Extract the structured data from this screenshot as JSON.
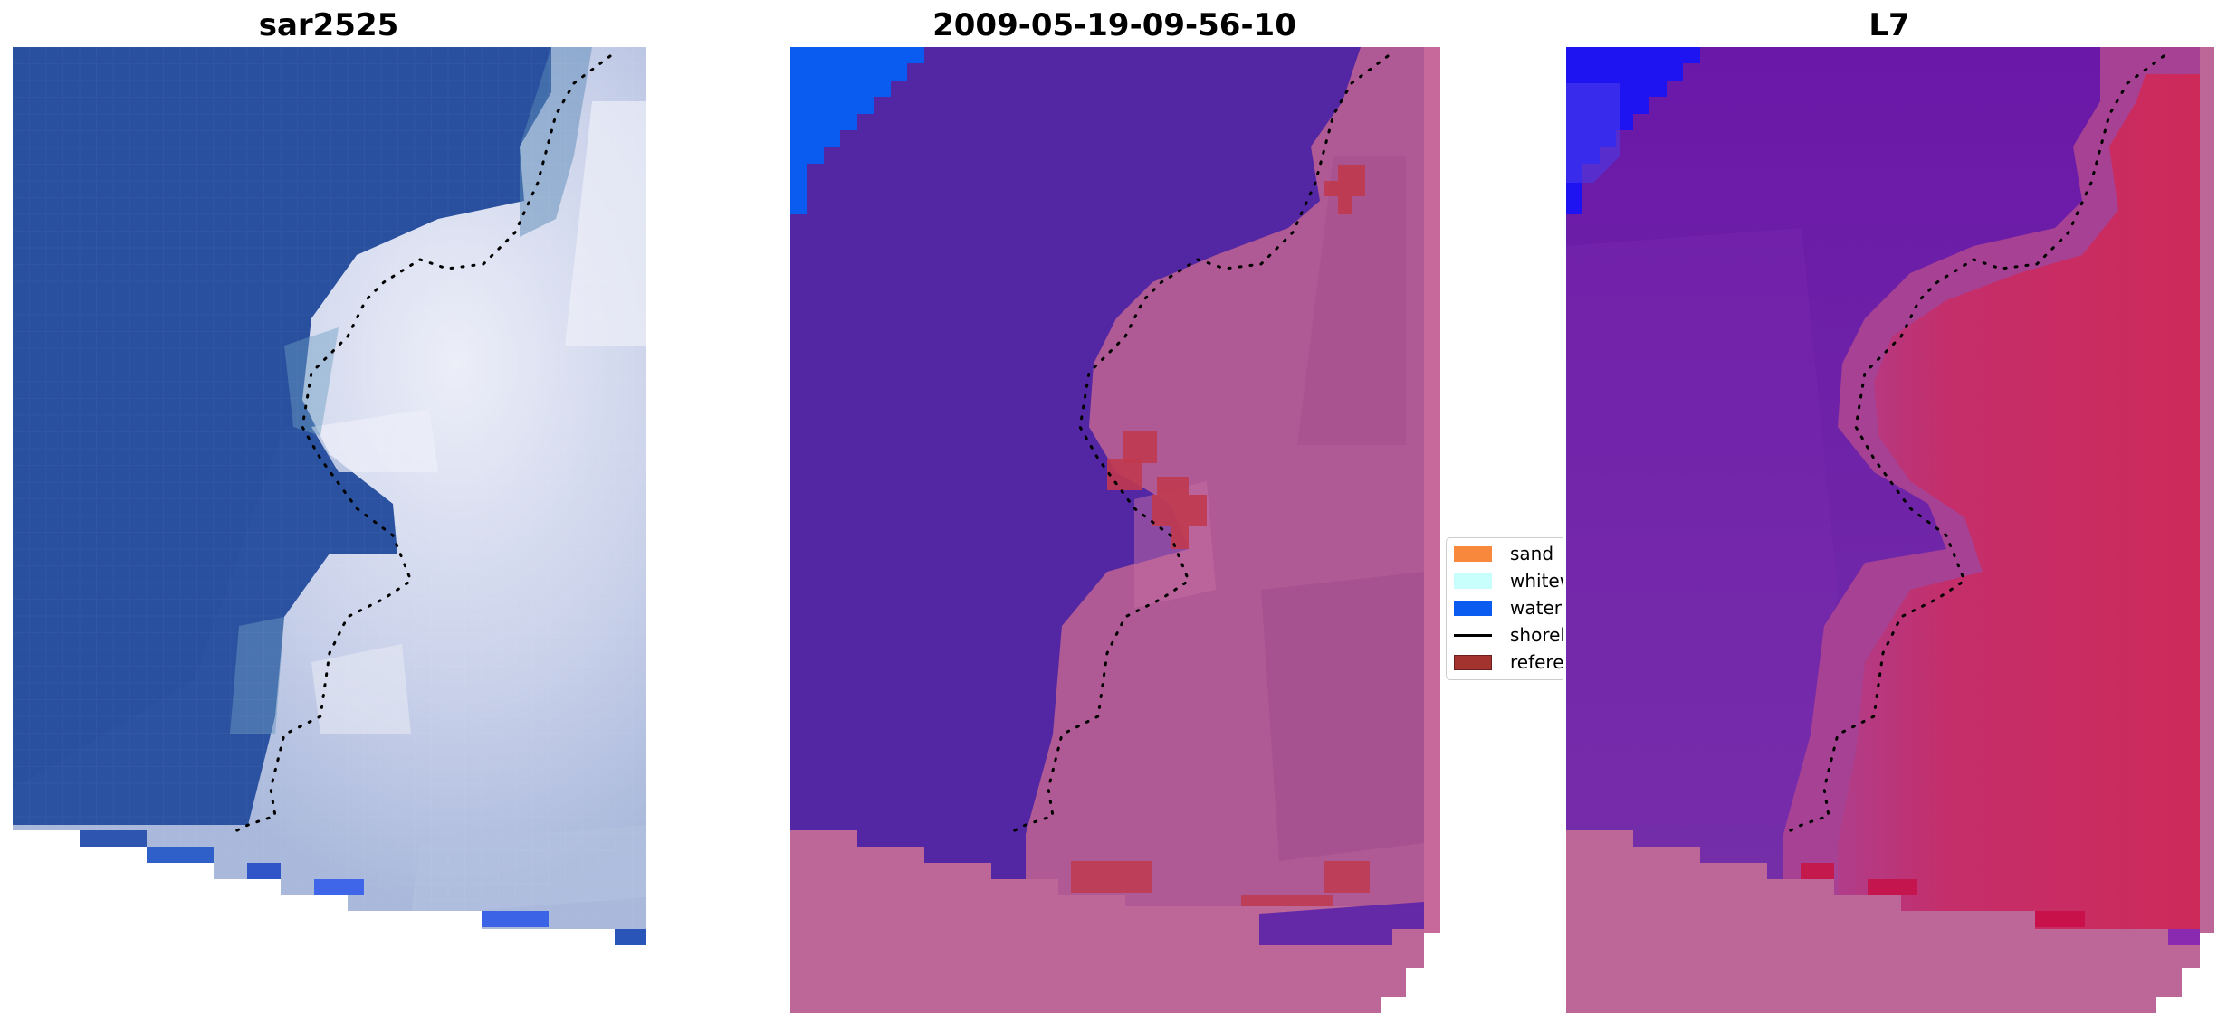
{
  "panels": [
    {
      "title": "sar2525"
    },
    {
      "title": "2009-05-19-09-56-10"
    },
    {
      "title": "L7"
    }
  ],
  "legend": {
    "items": [
      {
        "label": "sand",
        "color": "#f7883c",
        "kind": "patch"
      },
      {
        "label": "whitewater",
        "color": "#c8fffd",
        "kind": "patch"
      },
      {
        "label": "water",
        "color": "#0a5cf0",
        "kind": "patch"
      },
      {
        "label": "shoreline",
        "color": "#000000",
        "kind": "line"
      },
      {
        "label": "reference shoreline buffer",
        "color": "#a3332e",
        "kind": "patch"
      }
    ]
  },
  "colors": {
    "water_rgb": "#2b52a0",
    "foam_rgb": "#d3d9ee",
    "sand_overlay": "#bd6799",
    "water_class": "#5327a3",
    "water_class_deep": "#0a5cf0",
    "buffer": "#c0394e",
    "l7_water": "#6a20a8",
    "l7_land": "#cc2a62",
    "bright_blue": "#1a1af5"
  }
}
